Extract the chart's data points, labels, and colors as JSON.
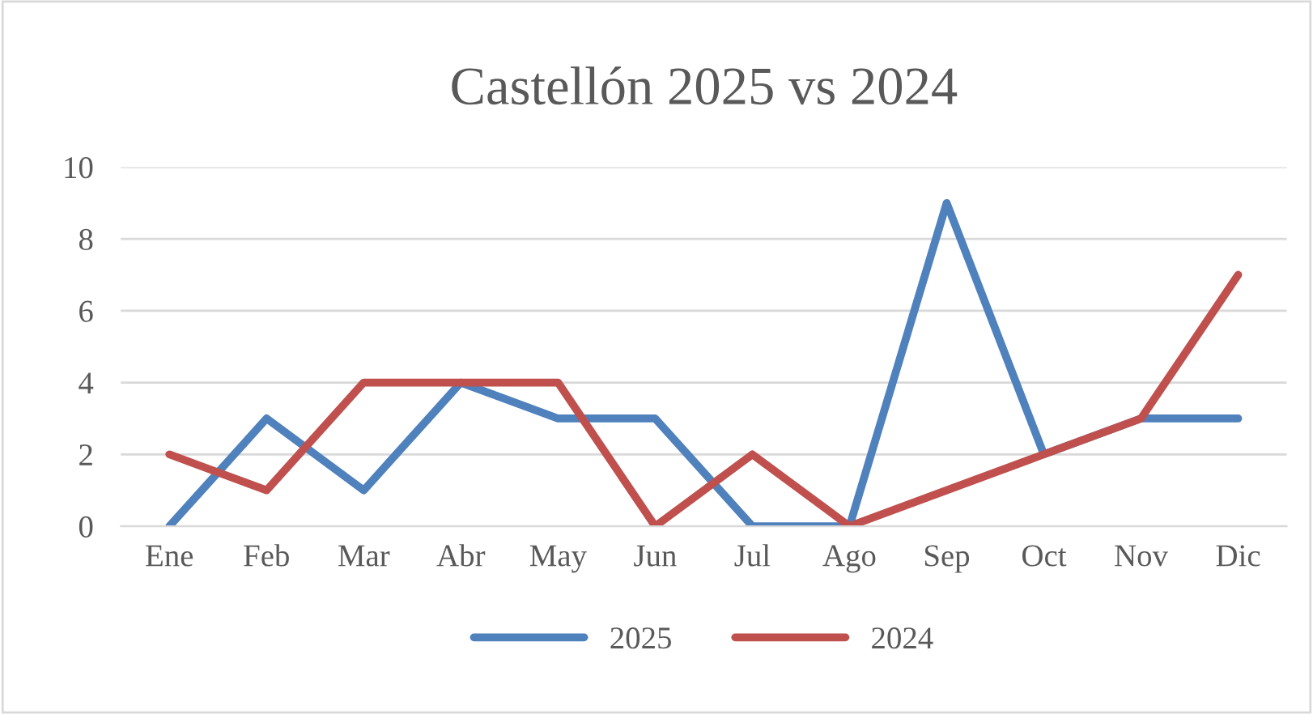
{
  "chart_data": {
    "type": "line",
    "title": "Castellón 2025 vs 2024",
    "categories": [
      "Ene",
      "Feb",
      "Mar",
      "Abr",
      "May",
      "Jun",
      "Jul",
      "Ago",
      "Sep",
      "Oct",
      "Nov",
      "Dic"
    ],
    "series": [
      {
        "name": "2025",
        "color": "#4f81bd",
        "values": [
          0,
          3,
          1,
          4,
          3,
          3,
          0,
          0,
          9,
          2,
          3,
          3
        ]
      },
      {
        "name": "2024",
        "color": "#c0504d",
        "values": [
          2,
          1,
          4,
          4,
          4,
          0,
          2,
          0,
          1,
          2,
          3,
          7
        ]
      }
    ],
    "ylim": [
      0,
      10
    ],
    "yticks": [
      0,
      2,
      4,
      6,
      8,
      10
    ],
    "grid": "y",
    "legend": "bottom",
    "marker": "none",
    "line_style": "solid"
  }
}
